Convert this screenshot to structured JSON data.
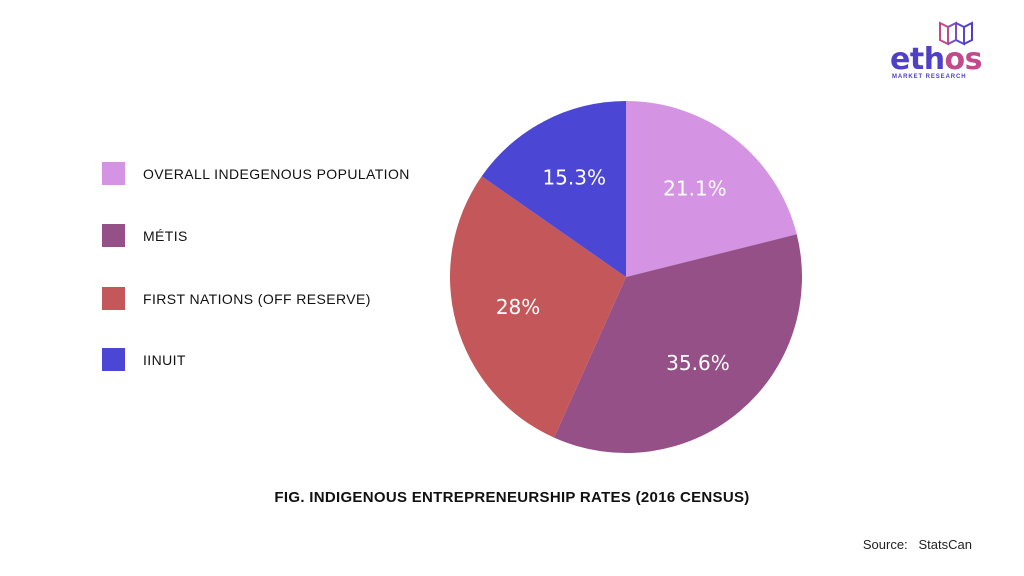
{
  "logo": {
    "word_a": "eth",
    "word_b": "os",
    "subtitle": "MARKET RESEARCH"
  },
  "chart_data": {
    "type": "pie",
    "title": "FIG. INDIGENOUS ENTREPRENEURSHIP RATES (2016 CENSUS)",
    "categories": [
      "OVERALL INDEGENOUS POPULATION",
      "MÉTIS",
      "FIRST NATIONS (OFF RESERVE)",
      "IINUIT"
    ],
    "values": [
      21.1,
      35.6,
      28,
      15.3
    ],
    "value_labels": [
      "21.1%",
      "35.6%",
      "28%",
      "15.3%"
    ],
    "colors": [
      "#d593e3",
      "#955088",
      "#c3575a",
      "#4c46d5"
    ],
    "legend_position": "left"
  },
  "source": {
    "label": "Source:",
    "value": "StatsCan"
  }
}
